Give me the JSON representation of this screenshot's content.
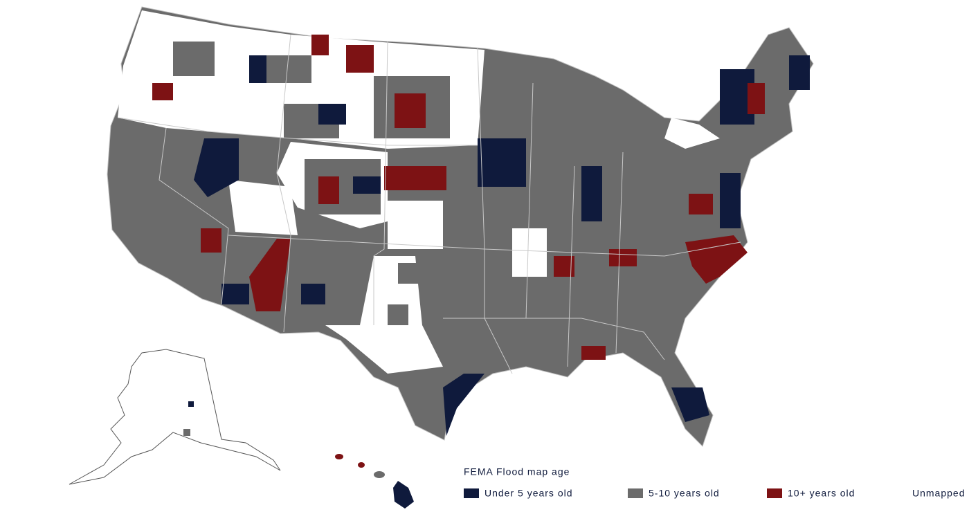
{
  "legend": {
    "title": "FEMA Flood map age",
    "items": [
      {
        "label": "Under 5 years old",
        "color": "#0f1a3c"
      },
      {
        "label": "5-10 years old",
        "color": "#6b6b6b"
      },
      {
        "label": "10+ years old",
        "color": "#7d1214"
      },
      {
        "label": "Unmapped",
        "color": "#ffffff"
      }
    ]
  }
}
